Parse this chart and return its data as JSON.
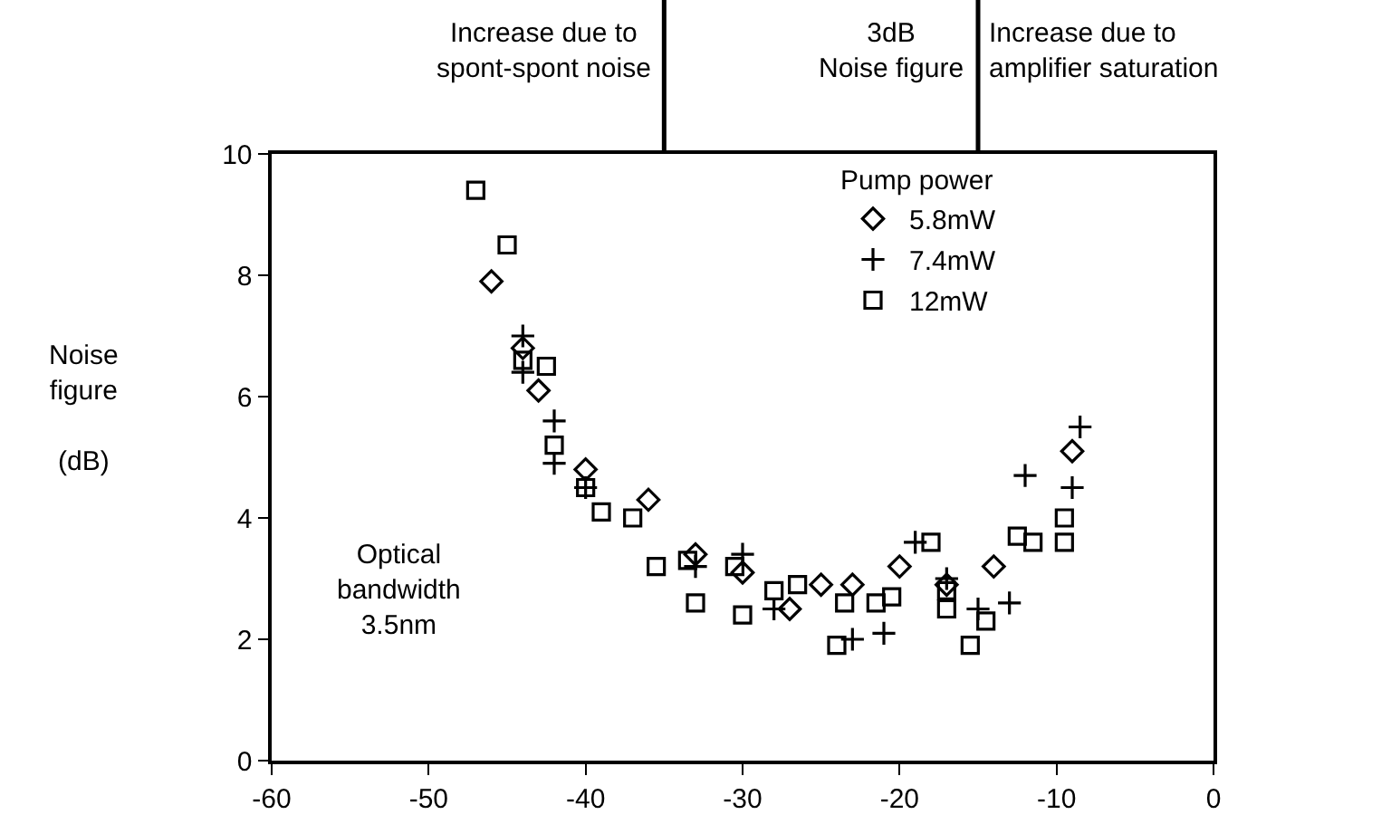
{
  "chart_data": {
    "type": "scatter",
    "ylabel": "Noise\nfigure\n\n(dB)",
    "legend_title": "Pump power",
    "legend": "top right",
    "grid": false,
    "xlim": [
      -60,
      0
    ],
    "xticks": [
      -60,
      -50,
      -40,
      -30,
      -20,
      -10,
      0
    ],
    "ylim": [
      0,
      10
    ],
    "yticks": [
      0,
      2,
      4,
      6,
      8,
      10
    ],
    "series": [
      {
        "name": "5.8mW",
        "color": "#000000",
        "marker": "diamond",
        "x": [
          -46,
          -44,
          -43,
          -40,
          -36,
          -33,
          -30,
          -27,
          -25,
          -23,
          -20,
          -17,
          -14,
          -9
        ],
        "values": [
          7.9,
          6.8,
          6.1,
          4.8,
          4.3,
          3.4,
          3.1,
          2.5,
          2.9,
          2.9,
          3.2,
          2.9,
          3.2,
          5.1
        ]
      },
      {
        "name": "7.4mW",
        "color": "#000000",
        "marker": "cross",
        "x": [
          -44,
          -44,
          -42,
          -42,
          -40,
          -33,
          -30,
          -28,
          -23,
          -21,
          -19,
          -17,
          -15,
          -13,
          -12,
          -9,
          -8.5
        ],
        "values": [
          7.0,
          6.4,
          5.6,
          4.9,
          4.5,
          3.2,
          3.4,
          2.5,
          2.0,
          2.1,
          3.6,
          3.0,
          2.5,
          2.6,
          4.7,
          4.5,
          5.5
        ]
      },
      {
        "name": "12mW",
        "color": "#000000",
        "marker": "square",
        "x": [
          -47,
          -45,
          -44,
          -42.5,
          -42,
          -40,
          -39,
          -37,
          -35.5,
          -33.5,
          -33,
          -30.5,
          -30,
          -28,
          -26.5,
          -24,
          -23.5,
          -21.5,
          -20.5,
          -18,
          -17,
          -17,
          -15.5,
          -14.5,
          -12.5,
          -11.5,
          -9.5,
          -9.5
        ],
        "values": [
          9.4,
          8.5,
          6.6,
          6.5,
          5.2,
          4.5,
          4.1,
          4.0,
          3.2,
          3.3,
          2.6,
          3.2,
          2.4,
          2.8,
          2.9,
          1.9,
          2.6,
          2.6,
          2.7,
          3.6,
          2.8,
          2.5,
          1.9,
          2.3,
          3.7,
          3.6,
          4.0,
          3.6
        ]
      }
    ],
    "ref_lines": [
      {
        "axis": "x",
        "value": -35,
        "label": "Increase due to\nspont-spont noise"
      },
      {
        "axis": "x",
        "value": -15,
        "label": "3dB\nNoise figure"
      }
    ],
    "annotations": [
      "Increase due to\namplifier saturation",
      "Optical\nbandwidth\n3.5nm"
    ]
  }
}
